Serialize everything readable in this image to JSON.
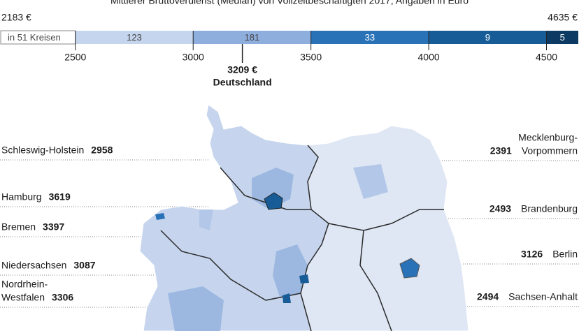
{
  "header": {
    "title": "Mittlerer Bruttoverdienst (Median) von Vollzeitbeschäftigten 2017, Angaben in Euro"
  },
  "legend": {
    "min": {
      "value": 2183,
      "label": "2183 €"
    },
    "max": {
      "value": 4635,
      "label": "4635 €"
    },
    "ticks": [
      2500,
      3000,
      3500,
      4000,
      4500
    ],
    "segments": [
      {
        "label": "in 51 Kreisen",
        "color": "#ffffff"
      },
      {
        "label": "123",
        "color": "#c5d5ee"
      },
      {
        "label": "181",
        "color": "#8eaedd"
      },
      {
        "label": "33",
        "color": "#2a72b8"
      },
      {
        "label": "9",
        "color": "#175c97"
      },
      {
        "label": "5",
        "color": "#0d3a63"
      }
    ],
    "national": {
      "value": 3209,
      "label": "3209 €",
      "name": "Deutschland"
    }
  },
  "states_left": [
    {
      "name": [
        "Schleswig-Holstein"
      ],
      "value": 2958
    },
    {
      "name": [
        "Hamburg"
      ],
      "value": 3619
    },
    {
      "name": [
        "Bremen"
      ],
      "value": 3397
    },
    {
      "name": [
        "Niedersachsen"
      ],
      "value": 3087
    },
    {
      "name": [
        "Nordrhein-",
        "Westfalen"
      ],
      "value": 3306
    }
  ],
  "states_right": [
    {
      "name": [
        "Mecklenburg-",
        "Vorpommern"
      ],
      "value": 2391
    },
    {
      "name": [
        "Brandenburg"
      ],
      "value": 2493
    },
    {
      "name": [
        "Berlin"
      ],
      "value": 3126
    },
    {
      "name": [
        "Sachsen-Anhalt"
      ],
      "value": 2494
    }
  ]
}
